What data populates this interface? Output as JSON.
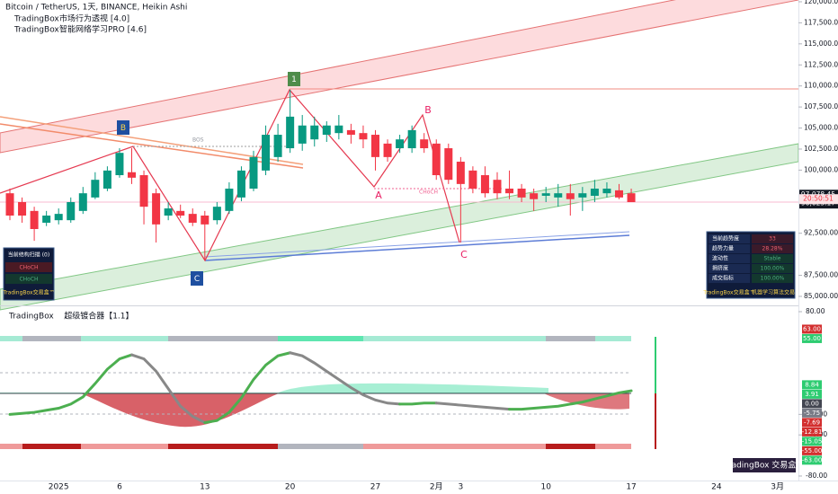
{
  "chart_data": [
    {
      "type": "candlestick",
      "title": "Bitcoin / TetherUS, 1天, BINANCE, Heikin Ashi",
      "indicators": [
        [
          "TradingBox",
          "市场行为透视 [4.0]"
        ],
        [
          "TradingBox",
          "智能网络学习PRO [4.6]"
        ]
      ],
      "categories": [
        null,
        null,
        null,
        null,
        "2025",
        null,
        null,
        null,
        null,
        "6",
        null,
        null,
        null,
        null,
        null,
        null,
        "13",
        null,
        null,
        null,
        null,
        null,
        null,
        "20",
        null,
        null,
        null,
        null,
        null,
        null,
        "27",
        null,
        null,
        null,
        null,
        "2月",
        null,
        "3",
        null,
        null,
        null,
        null,
        null,
        null,
        "10",
        null,
        null,
        null,
        null,
        null,
        null,
        "17",
        null,
        null,
        null,
        null,
        null,
        null,
        "24",
        null,
        null,
        null,
        null,
        "3月"
      ],
      "open": [
        97250,
        96200,
        95150,
        93750,
        94050,
        94050,
        95150,
        96750,
        97800,
        99400,
        99750,
        99400,
        97250,
        94600,
        95150,
        94800,
        94600,
        94050,
        95150,
        96750,
        97800,
        99950,
        101550,
        102600,
        103150,
        103650,
        104200,
        104400,
        104750,
        104400,
        104200,
        103150,
        102600,
        102600,
        103650,
        103150,
        102600,
        101000,
        99950,
        99400,
        98850,
        97800,
        97800,
        97250,
        96950,
        96750,
        97250,
        96750,
        96950,
        97250,
        97600,
        97250,
        null,
        null,
        null,
        null,
        null,
        null,
        null,
        null,
        null,
        null,
        null,
        null
      ],
      "high": [
        97800,
        96750,
        95650,
        95150,
        95450,
        96750,
        98000,
        99750,
        100450,
        102600,
        102600,
        99950,
        97800,
        96200,
        95900,
        95450,
        95150,
        96200,
        98550,
        100450,
        102300,
        105300,
        105500,
        109550,
        106550,
        106350,
        105800,
        106550,
        105500,
        105300,
        104750,
        103650,
        104200,
        105300,
        104400,
        103650,
        103150,
        101550,
        100450,
        100450,
        99750,
        99950,
        98350,
        97800,
        98000,
        98350,
        98350,
        98000,
        98850,
        98550,
        98350,
        97800,
        null,
        null,
        null,
        null,
        null,
        null,
        null,
        null,
        null,
        null,
        null,
        null
      ],
      "low": [
        94050,
        93750,
        91600,
        93350,
        93550,
        93750,
        94800,
        96550,
        97500,
        99100,
        98350,
        93550,
        91400,
        94050,
        94300,
        93350,
        89250,
        93550,
        94800,
        96300,
        97500,
        99400,
        101000,
        102050,
        102300,
        102800,
        103350,
        103650,
        103150,
        102600,
        99950,
        101000,
        102050,
        102050,
        102050,
        98850,
        98350,
        91400,
        97250,
        96750,
        96550,
        96550,
        96200,
        95150,
        96200,
        95650,
        94600,
        95150,
        96200,
        96750,
        96550,
        96200,
        null,
        null,
        null,
        null,
        null,
        null,
        null,
        null,
        null,
        null,
        null,
        null
      ],
      "close": [
        94600,
        94600,
        93000,
        94600,
        94800,
        96200,
        97250,
        98850,
        99950,
        102050,
        99100,
        95650,
        93550,
        95450,
        94600,
        93750,
        93550,
        95650,
        97800,
        99950,
        101550,
        104200,
        104200,
        106350,
        105300,
        105300,
        105300,
        105300,
        104200,
        103650,
        101550,
        101550,
        103650,
        104750,
        102600,
        99400,
        98850,
        98350,
        97800,
        97250,
        97250,
        97250,
        96750,
        96550,
        97250,
        97250,
        96550,
        97250,
        97800,
        97800,
        96750,
        96200,
        null,
        null,
        null,
        null,
        null,
        null,
        null,
        null,
        null,
        null,
        null,
        null
      ],
      "up_color": "#089981",
      "down_color": "#f23645",
      "ylim": [
        83930,
        120210
      ],
      "yticks": [
        {
          "value": 120000,
          "label": "120,000.00"
        },
        {
          "value": 117500,
          "label": "117,500.00"
        },
        {
          "value": 115000,
          "label": "115,000.00"
        },
        {
          "value": 112500,
          "label": "112,500.00"
        },
        {
          "value": 110000,
          "label": "110,000.00"
        },
        {
          "value": 107500,
          "label": "107,500.00"
        },
        {
          "value": 105000,
          "label": "105,000.00"
        },
        {
          "value": 102500,
          "label": "102,500.00"
        },
        {
          "value": 100000,
          "label": "100,000.00"
        },
        {
          "value": 92500,
          "label": "92,500.00"
        },
        {
          "value": 87500,
          "label": "87,500.00"
        },
        {
          "value": 85000,
          "label": "85,000.00"
        }
      ],
      "price_tags": [
        {
          "value": 97078.45,
          "label": "97,078.45",
          "color": "#131722"
        },
        {
          "value": 96023.17,
          "label": "96,023.17",
          "color": "#131722"
        }
      ],
      "countdown": "20:50:51",
      "annotations": [
        "1",
        "B",
        "C",
        "A",
        "B",
        "C",
        "BOS",
        "CHoCH"
      ],
      "structure_table": {
        "title": "当前结构扫描 (0)",
        "rows": [
          "CHoCH",
          "CHoCH"
        ],
        "footer": "TradingBox交易盒™"
      },
      "info_table": {
        "rows": [
          [
            "当前趋势度",
            "33"
          ],
          [
            "趋势力量",
            "28.28%"
          ],
          [
            "波动性",
            "Stable"
          ],
          [
            "拥挤度",
            "100.00%"
          ],
          [
            "成交指标",
            "100.00%"
          ]
        ],
        "footer": [
          "TradingBox交易盒™",
          "机器学习算法交易"
        ]
      }
    },
    {
      "type": "line",
      "title": "TradingBox    超级镀合器【1.1】",
      "values": [
        -20,
        -19,
        -18,
        -16,
        -14,
        -10,
        -3,
        10,
        24,
        34,
        38,
        34,
        22,
        5,
        -12,
        -22,
        -28,
        -26,
        -18,
        -4,
        14,
        28,
        37,
        40,
        37,
        30,
        22,
        14,
        6,
        -1,
        -6,
        -9,
        -10,
        -10,
        -9,
        -9,
        -10,
        -11,
        -12,
        -13,
        -14,
        -15,
        -15,
        -14,
        -13,
        -12,
        -10,
        -8,
        -5,
        -2,
        1,
        3,
        null,
        null,
        null,
        null,
        null,
        null,
        null,
        null,
        null,
        null,
        null,
        null
      ],
      "color": "#4caf50",
      "falling_color": "#888888",
      "ylim": [
        -84.4,
        83.5
      ],
      "yticks": [
        {
          "value": 80,
          "label": "80.00"
        },
        {
          "value": -20,
          "label": "-20.00"
        },
        {
          "value": -40,
          "label": "-40.00"
        },
        {
          "value": -80,
          "label": "-80.00"
        }
      ],
      "tags": [
        {
          "value": 63,
          "label": "63.00",
          "color": "#d32f2f"
        },
        {
          "value": 55,
          "label": "55.00",
          "color": "#2ecc71"
        },
        {
          "value": 8.84,
          "label": "8.84",
          "color": "#2ecc71"
        },
        {
          "value": 3.91,
          "label": "3.91",
          "color": "#2ecc71"
        },
        {
          "value": 0,
          "label": "0.00",
          "color": "#434651"
        },
        {
          "value": -5.75,
          "label": "-5.75",
          "color": "#787b86"
        },
        {
          "value": -7.69,
          "label": "-7.69",
          "color": "#d32f2f"
        },
        {
          "value": -12.81,
          "label": "-12.81",
          "color": "#d32f2f"
        },
        {
          "value": -15.05,
          "label": "-15.05",
          "color": "#2ecc71"
        },
        {
          "value": -55,
          "label": "-55.00",
          "color": "#d32f2f"
        },
        {
          "value": -63,
          "label": "-63.00",
          "color": "#2ecc71"
        }
      ],
      "badge": "TradingBox 交易盒™"
    }
  ]
}
